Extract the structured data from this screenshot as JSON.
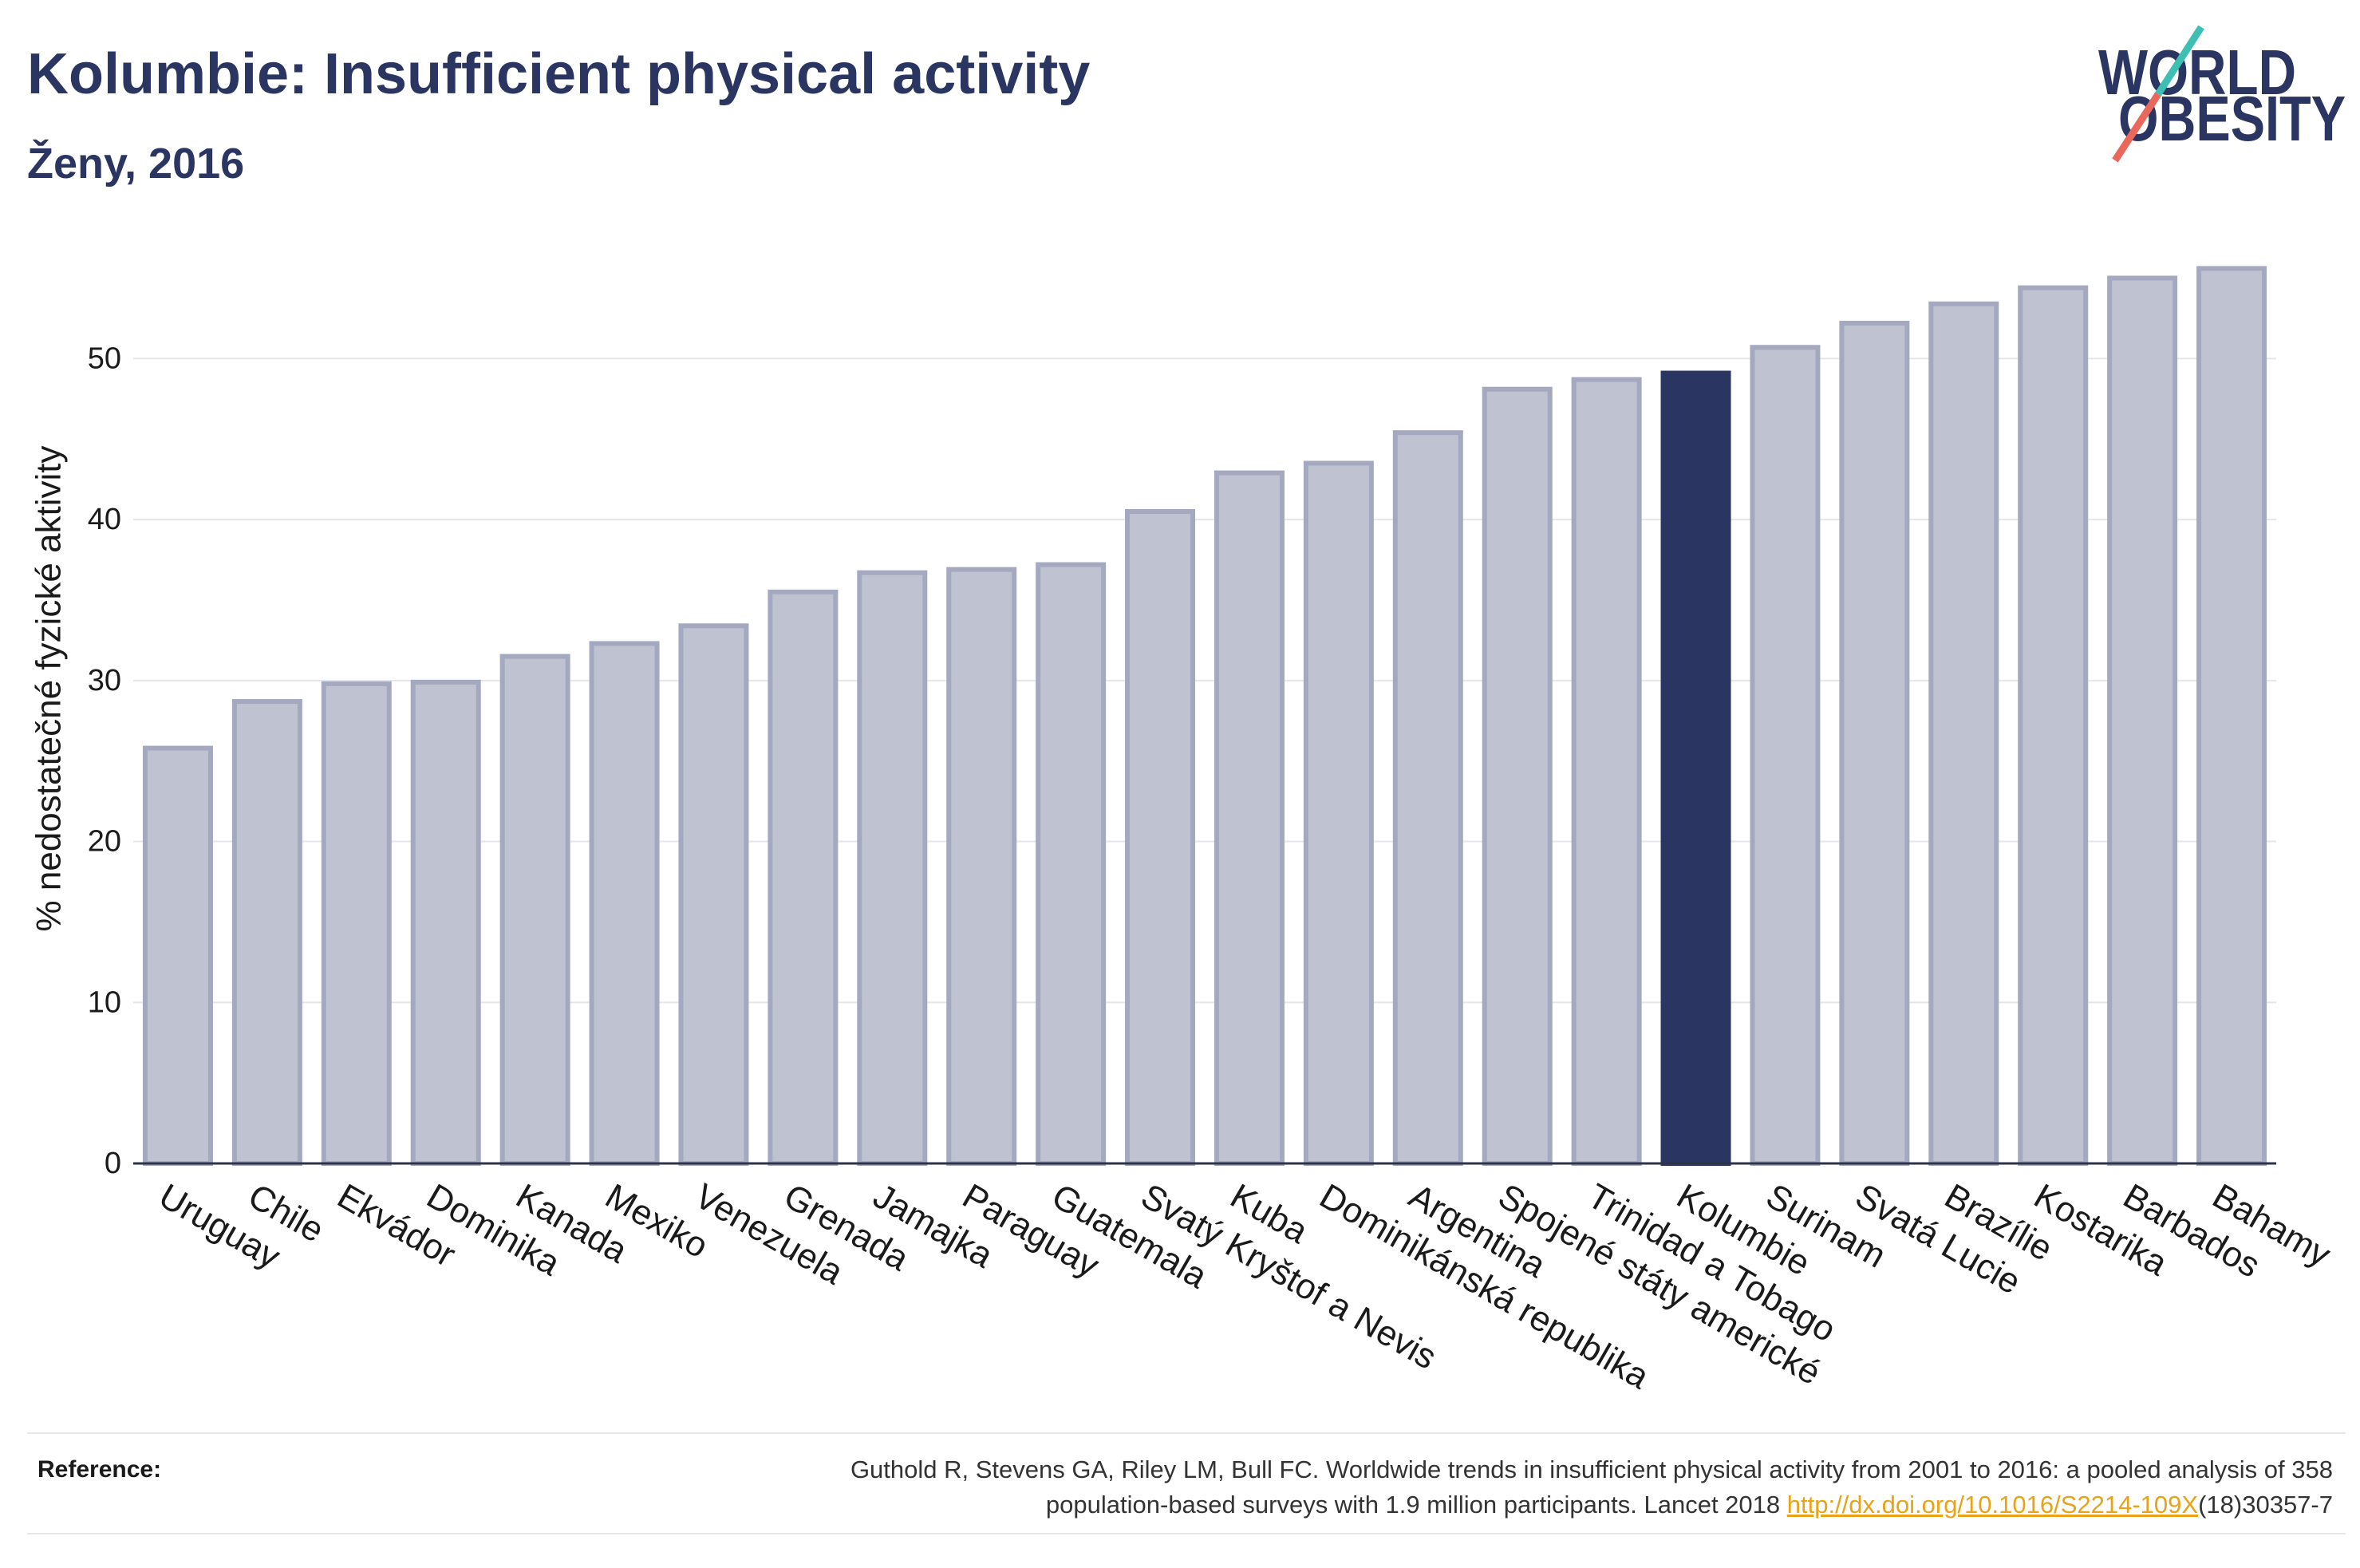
{
  "chart_data": {
    "type": "bar",
    "title": "Kolumbie: Insufficient physical activity",
    "subtitle": "Ženy, 2016",
    "xlabel": "",
    "ylabel": "% nedostatečné fyzické aktivity",
    "categories": [
      "Uruguay",
      "Chile",
      "Ekvádor",
      "Dominika",
      "Kanada",
      "Mexiko",
      "Venezuela",
      "Grenada",
      "Jamajka",
      "Paraguay",
      "Guatemala",
      "Svatý Kryštof a Nevis",
      "Kuba",
      "Dominikánská republika",
      "Argentina",
      "Spojené státy americké",
      "Trinidad a Tobago",
      "Kolumbie",
      "Surinam",
      "Svatá Lucie",
      "Brazílie",
      "Kostarika",
      "Barbados",
      "Bahamy"
    ],
    "values": [
      25.8,
      28.7,
      29.8,
      29.9,
      31.5,
      32.3,
      33.4,
      35.5,
      36.7,
      36.9,
      37.2,
      40.5,
      42.9,
      43.5,
      45.4,
      48.1,
      48.7,
      49.1,
      50.7,
      52.2,
      53.4,
      54.4,
      55.0,
      55.6
    ],
    "highlight": "Kolumbie",
    "ylim": [
      0,
      58
    ],
    "yticks": [
      0,
      10,
      20,
      30,
      40,
      50
    ],
    "grid": true
  },
  "logo": {
    "line1": "WORLD",
    "line2": "OBESITY"
  },
  "reference": {
    "label": "Reference:",
    "line1": "Guthold R, Stevens GA, Riley LM, Bull FC. Worldwide trends in insufficient physical activity from 2001 to 2016: a pooled analysis of 358",
    "line2_prefix": "population-based surveys with 1.9 million participants. Lancet 2018 ",
    "link": "http://dx.doi.org/10.1016/S2214-109X",
    "line2_suffix": "(18)30357-7"
  },
  "colors": {
    "title": "#2b3562",
    "bar": "#bfc2d0",
    "bar_border": "#a4a9bf",
    "highlight": "#2a3561",
    "grid": "#e5e6eb",
    "axis": "#2d3348",
    "link": "#e8a317",
    "logo_text": "#2b3562",
    "logo_teal": "#3dbfb3",
    "logo_coral": "#e9685b"
  }
}
